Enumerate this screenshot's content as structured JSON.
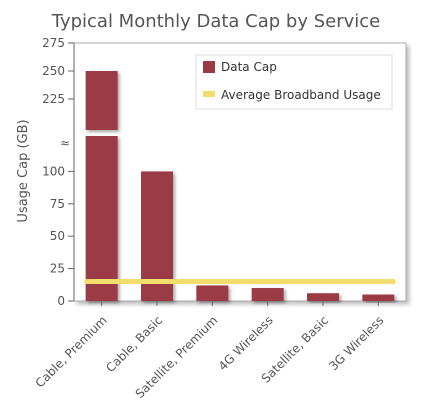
{
  "chart_data": {
    "type": "bar",
    "title": "Typical Monthly Data Cap by Service",
    "xlabel": "",
    "ylabel": "Usage Cap (GB)",
    "categories": [
      "Cable, Premium",
      "Cable, Basic",
      "Satellite, Premium",
      "4G Wireless",
      "Satellite, Basic",
      "3G Wireless"
    ],
    "series": [
      {
        "name": "Data Cap",
        "type": "bar",
        "color": "#9b3a45",
        "values": [
          250,
          100,
          12,
          10,
          6,
          5
        ]
      },
      {
        "name": "Average Broadband Usage",
        "type": "line",
        "color": "#f2dc6b",
        "values": [
          15,
          15,
          15,
          15,
          15,
          15
        ]
      }
    ],
    "y_segments": [
      {
        "range": [
          0,
          125
        ],
        "ticks": [
          0,
          25,
          50,
          75,
          100
        ]
      },
      {
        "range": [
          200,
          275
        ],
        "ticks": [
          225,
          250,
          275
        ]
      }
    ],
    "axis_break_symbol": "≈",
    "grid": false,
    "legend_position": "top-right"
  }
}
